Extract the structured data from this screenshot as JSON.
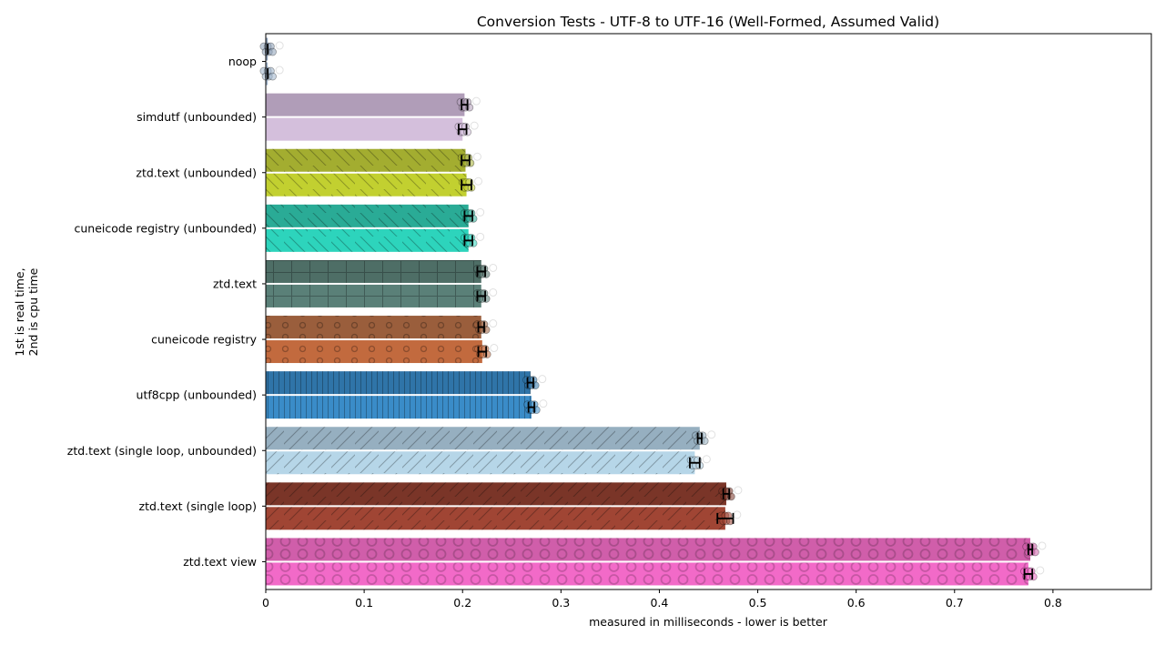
{
  "chart_data": {
    "type": "bar",
    "orientation": "horizontal",
    "title": "Conversion Tests - UTF-8 to UTF-16 (Well-Formed, Assumed Valid)",
    "xlabel": "measured in milliseconds - lower is better",
    "ylabel_lines": [
      "1st is real time,",
      "2nd is cpu time"
    ],
    "xlim": [
      0,
      0.9
    ],
    "xticks": [
      0,
      0.1,
      0.2,
      0.3,
      0.4,
      0.5,
      0.6,
      0.7,
      0.8
    ],
    "xtick_labels": [
      "0",
      "0.1",
      "0.2",
      "0.3",
      "0.4",
      "0.5",
      "0.6",
      "0.7",
      "0.8"
    ],
    "grid": false,
    "categories": [
      "noop",
      "simdutf (unbounded)",
      "ztd.text (unbounded)",
      "cuneicode registry (unbounded)",
      "ztd.text",
      "cuneicode registry",
      "utf8cpp (unbounded)",
      "ztd.text (single loop, unbounded)",
      "ztd.text (single loop)",
      "ztd.text view"
    ],
    "series": [
      {
        "key": "real_time",
        "values": [
          0.002,
          0.202,
          0.203,
          0.206,
          0.219,
          0.219,
          0.269,
          0.441,
          0.468,
          0.777
        ],
        "error": [
          0.0,
          0.003,
          0.004,
          0.004,
          0.004,
          0.003,
          0.003,
          0.002,
          0.003,
          0.002
        ]
      },
      {
        "key": "cpu_time",
        "values": [
          0.002,
          0.2,
          0.204,
          0.206,
          0.219,
          0.22,
          0.27,
          0.436,
          0.467,
          0.775
        ],
        "error": [
          0.0,
          0.004,
          0.005,
          0.004,
          0.004,
          0.004,
          0.003,
          0.005,
          0.008,
          0.004
        ]
      }
    ],
    "colors": {
      "real": [
        "#8da0b8",
        "#b09db8",
        "#a3ad30",
        "#2aab96",
        "#4e6e66",
        "#9a5e3c",
        "#2f74a8",
        "#96afc0",
        "#7a3528",
        "#d05eaa"
      ],
      "cpu": [
        "#9fb4cc",
        "#d4bfdc",
        "#c2d030",
        "#2dd4bc",
        "#5a8078",
        "#c26a3e",
        "#3a8cc8",
        "#b6d6e8",
        "#a04534",
        "#f26ac8"
      ]
    },
    "patterns": [
      "none",
      "none",
      "hatch-backslash",
      "hatch-backslash",
      "grid",
      "circles-small",
      "vertical",
      "hatch-slash",
      "hatch-slash",
      "circles-large"
    ]
  }
}
